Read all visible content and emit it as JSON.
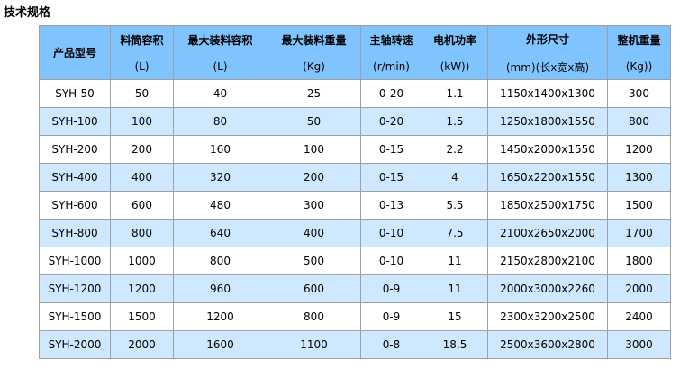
{
  "title": "技术规格",
  "header_color": "#80c4ff",
  "alt_row_color": "#cde8ff",
  "columns": [
    {
      "label": "产品型号",
      "unit": ""
    },
    {
      "label": "料筒容积",
      "unit": "(L)"
    },
    {
      "label": "最大装料容积",
      "unit": "(L)"
    },
    {
      "label": "最大装料重量",
      "unit": "(Kg)"
    },
    {
      "label": "主轴转速",
      "unit": "(r/min)"
    },
    {
      "label": "电机功率",
      "unit": "(kW))"
    },
    {
      "label": "外形尺寸",
      "unit": "(mm)(长x宽x高)"
    },
    {
      "label": "整机重量",
      "unit": "(Kg))"
    }
  ],
  "rows": [
    [
      "SYH-50",
      "50",
      "40",
      "25",
      "0-20",
      "1.1",
      "1150x1400x1300",
      "300"
    ],
    [
      "SYH-100",
      "100",
      "80",
      "50",
      "0-20",
      "1.5",
      "1250x1800x1550",
      "800"
    ],
    [
      "SYH-200",
      "200",
      "160",
      "100",
      "0-15",
      "2.2",
      "1450x2000x1550",
      "1200"
    ],
    [
      "SYH-400",
      "400",
      "320",
      "200",
      "0-15",
      "4",
      "1650x2200x1550",
      "1300"
    ],
    [
      "SYH-600",
      "600",
      "480",
      "300",
      "0-13",
      "5.5",
      "1850x2500x1750",
      "1500"
    ],
    [
      "SYH-800",
      "800",
      "640",
      "400",
      "0-10",
      "7.5",
      "2100x2650x2000",
      "1700"
    ],
    [
      "SYH-1000",
      "1000",
      "800",
      "500",
      "0-10",
      "11",
      "2150x2800x2100",
      "1800"
    ],
    [
      "SYH-1200",
      "1200",
      "960",
      "600",
      "0-9",
      "11",
      "2000x3000x2260",
      "2000"
    ],
    [
      "SYH-1500",
      "1500",
      "1200",
      "800",
      "0-9",
      "15",
      "2300x3200x2500",
      "2400"
    ],
    [
      "SYH-2000",
      "2000",
      "1600",
      "1100",
      "0-8",
      "18.5",
      "2500x3600x2800",
      "3000"
    ]
  ]
}
